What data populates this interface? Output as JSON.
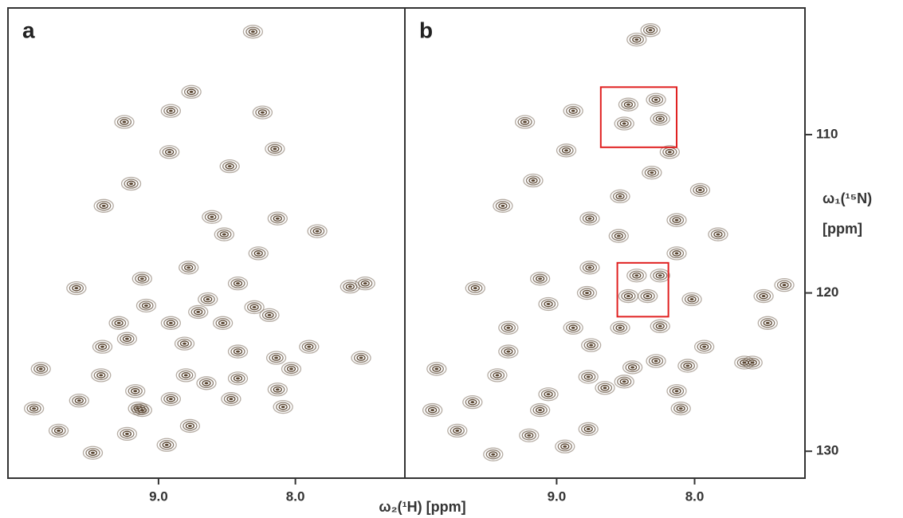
{
  "chart_data": [
    {
      "type": "scatter",
      "label": "a",
      "color": "#5a4632",
      "xlabel": "ω₂(¹H) [ppm]",
      "xlim": [
        10.1,
        7.2
      ],
      "ylim": [
        102,
        131.7
      ],
      "xticks": [
        {
          "value": 9,
          "label": "9.0"
        },
        {
          "value": 8,
          "label": "8.0"
        }
      ],
      "x": [
        8.31,
        8.76,
        8.91,
        9.25,
        8.24,
        8.15,
        8.92,
        8.48,
        9.2,
        9.4,
        8.61,
        8.13,
        8.52,
        7.84,
        8.27,
        8.78,
        9.12,
        9.6,
        8.42,
        7.6,
        7.49,
        8.64,
        9.09,
        8.71,
        8.3,
        8.19,
        9.29,
        8.91,
        8.53,
        9.23,
        8.81,
        8.42,
        9.41,
        7.9,
        7.52,
        8.14,
        9.86,
        9.42,
        8.8,
        8.65,
        8.42,
        8.03,
        9.17,
        8.91,
        8.47,
        8.13,
        9.58,
        9.12,
        8.09,
        9.91,
        9.73,
        9.23,
        8.77,
        8.94,
        9.48,
        9.15
      ],
      "y": [
        103.5,
        107.3,
        108.5,
        109.2,
        108.6,
        110.9,
        111.1,
        112.0,
        113.1,
        114.5,
        115.2,
        115.3,
        116.3,
        116.1,
        117.5,
        118.4,
        119.1,
        119.7,
        119.4,
        119.6,
        119.4,
        120.4,
        120.8,
        121.2,
        120.9,
        121.4,
        121.9,
        121.9,
        121.9,
        122.9,
        123.2,
        123.7,
        123.4,
        123.4,
        124.1,
        124.1,
        124.8,
        125.2,
        125.2,
        125.7,
        125.4,
        124.8,
        126.2,
        126.7,
        126.7,
        126.1,
        126.8,
        127.4,
        127.2,
        127.3,
        128.7,
        128.9,
        128.4,
        129.6,
        130.1,
        127.3
      ]
    },
    {
      "type": "scatter",
      "label": "b",
      "color": "#5a4632",
      "ylabel": [
        "ω₁(¹⁵N)",
        "[ppm]"
      ],
      "xlim": [
        10.1,
        7.2
      ],
      "ylim": [
        102,
        131.7
      ],
      "xticks": [
        {
          "value": 9,
          "label": "9.0"
        },
        {
          "value": 8,
          "label": "8.0"
        }
      ],
      "yticks": [
        110,
        120,
        130
      ],
      "highlights": [
        {
          "x": [
            8.68,
            8.13
          ],
          "y": [
            107.0,
            110.8
          ],
          "color": "#e02020"
        },
        {
          "x": [
            8.56,
            8.19
          ],
          "y": [
            118.1,
            121.5
          ],
          "color": "#e02020"
        }
      ],
      "x": [
        8.32,
        8.42,
        8.88,
        8.48,
        8.28,
        8.25,
        8.51,
        9.23,
        8.93,
        8.18,
        9.17,
        9.39,
        8.31,
        7.96,
        8.54,
        8.76,
        8.13,
        8.55,
        7.83,
        8.13,
        8.76,
        8.42,
        8.25,
        9.12,
        9.59,
        8.78,
        8.48,
        8.34,
        8.02,
        7.5,
        7.35,
        9.06,
        9.35,
        8.88,
        8.54,
        8.25,
        7.47,
        9.35,
        8.75,
        7.93,
        7.64,
        8.28,
        8.05,
        9.87,
        9.43,
        8.77,
        8.45,
        9.06,
        8.65,
        8.51,
        8.13,
        9.61,
        9.12,
        8.1,
        9.9,
        9.72,
        9.2,
        8.77,
        8.94,
        9.46,
        7.58
      ],
      "y": [
        103.4,
        104.0,
        108.5,
        108.1,
        107.8,
        109.0,
        109.3,
        109.2,
        111.0,
        111.1,
        112.9,
        114.5,
        112.4,
        113.5,
        113.9,
        115.3,
        115.4,
        116.4,
        116.3,
        117.5,
        118.4,
        118.9,
        118.9,
        119.1,
        119.7,
        120.0,
        120.2,
        120.2,
        120.4,
        120.2,
        119.5,
        120.7,
        122.2,
        122.2,
        122.2,
        122.1,
        121.9,
        123.7,
        123.3,
        123.4,
        124.4,
        124.3,
        124.6,
        124.8,
        125.2,
        125.3,
        124.7,
        126.4,
        126.0,
        125.6,
        126.2,
        126.9,
        127.4,
        127.3,
        127.4,
        128.7,
        129.0,
        128.6,
        129.7,
        130.2,
        124.4
      ]
    }
  ]
}
